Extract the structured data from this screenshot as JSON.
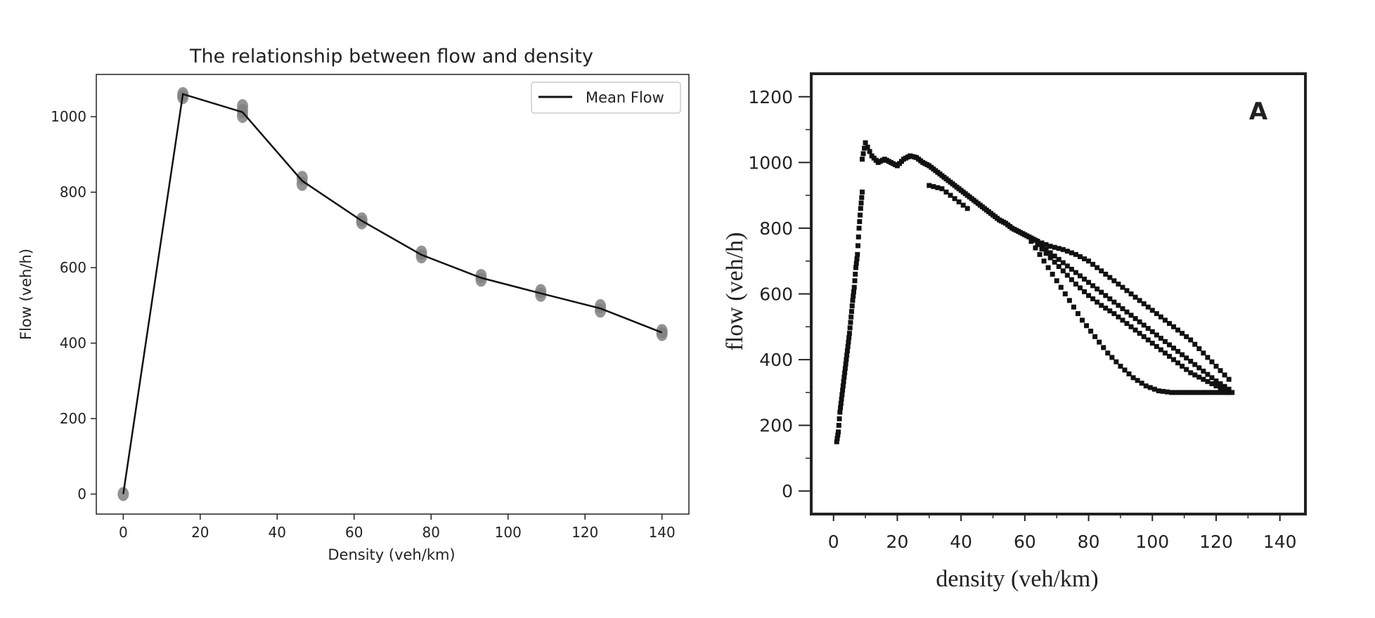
{
  "chart_data": [
    {
      "type": "line",
      "title": "The relationship between flow and density",
      "xlabel": "Density (veh/km)",
      "ylabel": "Flow (veh/h)",
      "xlim": [
        -7,
        147
      ],
      "ylim": [
        -53,
        1112
      ],
      "xticks": [
        0,
        20,
        40,
        60,
        80,
        100,
        120,
        140
      ],
      "yticks": [
        0,
        200,
        400,
        600,
        800,
        1000
      ],
      "grid": false,
      "legend_position": "top-right",
      "series": [
        {
          "name": "Mean Flow",
          "color": "#111111",
          "x": [
            0,
            15.5,
            31,
            46.5,
            62,
            77.5,
            93,
            108.5,
            124,
            140
          ],
          "y": [
            0,
            1060,
            1012,
            830,
            724,
            634,
            573,
            532,
            492,
            428
          ]
        }
      ],
      "scatter": {
        "color": "#808080",
        "x": [
          0,
          15.5,
          15.5,
          31,
          31,
          31,
          46.5,
          46.5,
          62,
          62,
          77.5,
          77.5,
          93,
          93,
          108.5,
          108.5,
          124,
          124,
          140,
          140
        ],
        "y": [
          0,
          1052,
          1060,
          1002,
          1015,
          1028,
          822,
          838,
          720,
          728,
          630,
          640,
          568,
          578,
          528,
          538,
          486,
          498,
          424,
          432
        ]
      }
    },
    {
      "type": "scatter",
      "title": "",
      "annotation": "A",
      "xlabel": "density (veh/km)",
      "ylabel": "flow (veh/h)",
      "xlim": [
        -7,
        148
      ],
      "ylim": [
        -70,
        1270
      ],
      "xticks": [
        0,
        20,
        40,
        60,
        80,
        100,
        120,
        140
      ],
      "yticks": [
        0,
        200,
        400,
        600,
        800,
        1000,
        1200
      ],
      "grid": false,
      "color": "#111111",
      "branches": [
        {
          "x": [
            1,
            1.5,
            2,
            2.5,
            3,
            3.5,
            4,
            4.5,
            5,
            5.5,
            6,
            6.5,
            7,
            7.5,
            8,
            8.5,
            9
          ],
          "y": [
            150,
            180,
            240,
            280,
            320,
            360,
            400,
            440,
            480,
            530,
            580,
            620,
            680,
            720,
            800,
            860,
            910
          ]
        },
        {
          "x": [
            9,
            10,
            12,
            14,
            16,
            18,
            20,
            22,
            24,
            26,
            28,
            30,
            32,
            34,
            36,
            38,
            40,
            42,
            44,
            46,
            48,
            50,
            52,
            54,
            56,
            58,
            60,
            62,
            64
          ],
          "y": [
            1010,
            1060,
            1020,
            1000,
            1010,
            1000,
            990,
            1010,
            1020,
            1015,
            1000,
            990,
            975,
            960,
            945,
            930,
            915,
            900,
            885,
            870,
            855,
            840,
            825,
            815,
            800,
            790,
            780,
            770,
            760
          ]
        },
        {
          "x": [
            64,
            68,
            72,
            76,
            80,
            84,
            88,
            92,
            96,
            100,
            104,
            108,
            112,
            116,
            120,
            124
          ],
          "y": [
            760,
            745,
            735,
            720,
            700,
            670,
            640,
            610,
            580,
            550,
            520,
            490,
            460,
            420,
            380,
            340
          ]
        },
        {
          "x": [
            64,
            68,
            72,
            76,
            80,
            84,
            88,
            92,
            96,
            100,
            104,
            108,
            112,
            116,
            120,
            124
          ],
          "y": [
            755,
            725,
            695,
            665,
            635,
            605,
            575,
            545,
            515,
            485,
            455,
            425,
            395,
            365,
            335,
            310
          ]
        },
        {
          "x": [
            64,
            68,
            72,
            76,
            80,
            84,
            88,
            92,
            96,
            100,
            104,
            108,
            112,
            116,
            120,
            124
          ],
          "y": [
            750,
            710,
            670,
            630,
            595,
            565,
            540,
            510,
            480,
            450,
            420,
            390,
            360,
            340,
            320,
            300
          ]
        },
        {
          "x": [
            62,
            66,
            70,
            74,
            78,
            82,
            86,
            90,
            94,
            98,
            102,
            106,
            110,
            114,
            118,
            122,
            125
          ],
          "y": [
            760,
            700,
            640,
            580,
            520,
            470,
            420,
            380,
            345,
            320,
            305,
            300,
            300,
            300,
            300,
            300,
            300
          ]
        },
        {
          "x": [
            30,
            34,
            38,
            42
          ],
          "y": [
            930,
            920,
            890,
            860
          ]
        }
      ]
    }
  ]
}
